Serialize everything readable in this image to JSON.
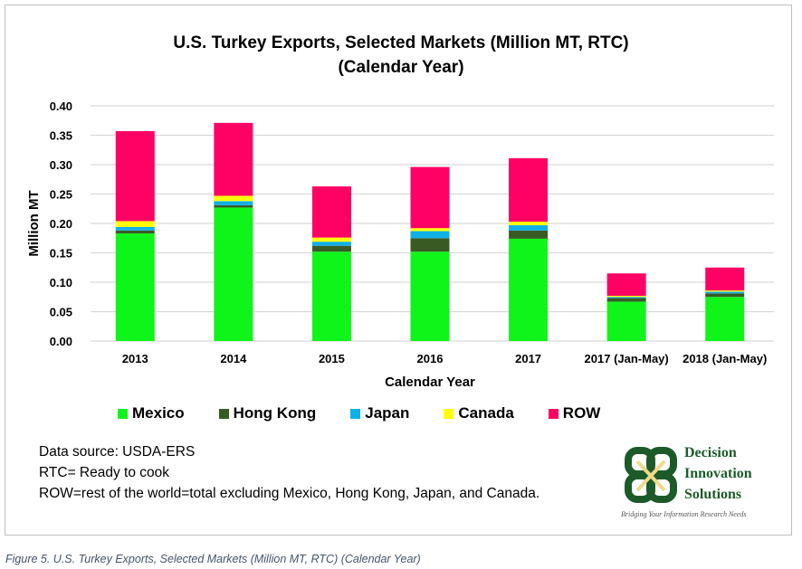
{
  "chart_data": {
    "type": "bar",
    "stacked": true,
    "title": "U.S. Turkey Exports, Selected Markets (Million MT, RTC)",
    "subtitle": "(Calendar Year)",
    "xlabel": "Calendar Year",
    "ylabel": "Million MT",
    "ylim": [
      0,
      0.4
    ],
    "yticks": [
      "0.00",
      "0.05",
      "0.10",
      "0.15",
      "0.20",
      "0.25",
      "0.30",
      "0.35",
      "0.40"
    ],
    "grid": true,
    "legend_position": "bottom",
    "categories": [
      "2013",
      "2014",
      "2015",
      "2016",
      "2017",
      "2017 (Jan-May)",
      "2018 (Jan-May)"
    ],
    "series": [
      {
        "name": "Mexico",
        "color": "#0ff51a",
        "values": [
          0.183,
          0.227,
          0.152,
          0.152,
          0.174,
          0.067,
          0.075
        ]
      },
      {
        "name": "Hong Kong",
        "color": "#3a5a24",
        "values": [
          0.005,
          0.004,
          0.01,
          0.023,
          0.014,
          0.006,
          0.006
        ]
      },
      {
        "name": "Japan",
        "color": "#10b0e8",
        "values": [
          0.006,
          0.007,
          0.007,
          0.012,
          0.009,
          0.002,
          0.003
        ]
      },
      {
        "name": "Canada",
        "color": "#ffff00",
        "values": [
          0.01,
          0.009,
          0.007,
          0.005,
          0.006,
          0.002,
          0.002
        ]
      },
      {
        "name": "ROW",
        "color": "#ff0064",
        "values": [
          0.153,
          0.124,
          0.087,
          0.104,
          0.108,
          0.038,
          0.039
        ]
      }
    ]
  },
  "notes": [
    "Data source: USDA-ERS",
    "RTC= Ready to  cook",
    "ROW=rest of the world=total excluding Mexico, Hong Kong, Japan, and Canada."
  ],
  "logo": {
    "lines": [
      "Decision",
      "Innovation",
      "Solutions"
    ],
    "tagline": "Bridging Your Information Research Needs"
  },
  "caption": "Figure 5. U.S. Turkey Exports, Selected Markets (Million MT, RTC) (Calendar Year)"
}
